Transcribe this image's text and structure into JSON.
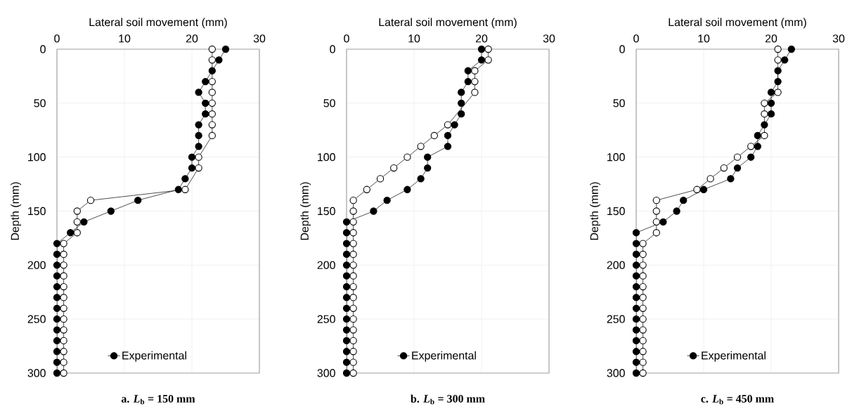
{
  "chart_data": [
    {
      "type": "line",
      "title": "a. *L*$_{b}$ = 150 mm",
      "xlabel": "Lateral soil movement (mm)",
      "ylabel": "Depth (mm)",
      "xlim": [
        0,
        30
      ],
      "xticks": [
        0,
        10,
        20,
        30
      ],
      "ylim": [
        300,
        0
      ],
      "yticks": [
        0,
        50,
        100,
        150,
        200,
        250,
        300
      ],
      "grid": true,
      "legend": "bottom",
      "marker": "circle",
      "line_style": "solid",
      "series": [
        {
          "name": "Experimental",
          "color": "#000000",
          "x": [
            25,
            24,
            23,
            22,
            21,
            22,
            22,
            21,
            21,
            21,
            20,
            20,
            19,
            18,
            12,
            8,
            4,
            2,
            0,
            0,
            0,
            0,
            0,
            0,
            0,
            0,
            0,
            0,
            0,
            0,
            0
          ],
          "values": [
            0,
            10,
            20,
            30,
            40,
            50,
            60,
            70,
            80,
            90,
            100,
            110,
            120,
            130,
            140,
            150,
            160,
            170,
            180,
            190,
            200,
            210,
            220,
            230,
            240,
            250,
            260,
            270,
            280,
            290,
            300
          ]
        },
        {
          "color": "#000000",
          "x": [
            23,
            23,
            null,
            23,
            23,
            23,
            23,
            23,
            23,
            null,
            21,
            21,
            null,
            19,
            5,
            3,
            3,
            3,
            1,
            1,
            1,
            1,
            1,
            1,
            1,
            1,
            1,
            1,
            1,
            1,
            1
          ],
          "values": [
            0,
            10,
            null,
            30,
            40,
            50,
            60,
            70,
            80,
            null,
            100,
            110,
            null,
            130,
            140,
            150,
            160,
            170,
            180,
            190,
            200,
            210,
            220,
            230,
            240,
            250,
            260,
            270,
            280,
            290,
            300
          ]
        }
      ]
    },
    {
      "type": "line",
      "title": "b. *L*$_{b}$ = 300 mm",
      "xlabel": "Lateral soil movement (mm)",
      "ylabel": "Depth (mm)",
      "xlim": [
        0,
        30
      ],
      "xticks": [
        0,
        10,
        20,
        30
      ],
      "ylim": [
        300,
        0
      ],
      "yticks": [
        0,
        50,
        100,
        150,
        200,
        250,
        300
      ],
      "grid": true,
      "legend": "bottom",
      "marker": "circle",
      "line_style": "solid",
      "series": [
        {
          "name": "Experimental",
          "color": "#000000",
          "x": [
            20,
            20,
            18,
            18,
            17,
            17,
            17,
            16,
            15,
            15,
            12,
            12,
            11,
            9,
            6,
            4,
            0,
            0,
            0,
            0,
            0,
            0,
            0,
            0,
            0,
            0,
            0,
            0,
            0,
            0,
            0
          ],
          "values": [
            0,
            10,
            20,
            30,
            40,
            50,
            60,
            70,
            80,
            90,
            100,
            110,
            120,
            130,
            140,
            150,
            160,
            170,
            180,
            190,
            200,
            210,
            220,
            230,
            240,
            250,
            260,
            270,
            280,
            290,
            300
          ]
        },
        {
          "color": "#000000",
          "x": [
            21,
            21,
            19,
            19,
            19,
            null,
            null,
            15,
            13,
            11,
            9,
            7,
            5,
            3,
            1,
            1,
            1,
            1,
            1,
            1,
            1,
            1,
            1,
            1,
            1,
            1,
            1,
            1,
            1,
            1,
            1
          ],
          "values": [
            0,
            10,
            20,
            30,
            40,
            null,
            null,
            70,
            80,
            90,
            100,
            110,
            120,
            130,
            140,
            150,
            160,
            170,
            180,
            190,
            200,
            210,
            220,
            230,
            240,
            250,
            260,
            270,
            280,
            290,
            300
          ]
        }
      ]
    },
    {
      "type": "line",
      "title": "c. *L*$_{b}$ = 450 mm",
      "xlabel": "Lateral soil movement (mm)",
      "ylabel": "Depth (mm)",
      "xlim": [
        0,
        30
      ],
      "xticks": [
        0,
        10,
        20,
        30
      ],
      "ylim": [
        300,
        0
      ],
      "yticks": [
        0,
        50,
        100,
        150,
        200,
        250,
        300
      ],
      "grid": true,
      "legend": "bottom",
      "marker": "circle",
      "line_style": "solid",
      "series": [
        {
          "name": "Experimental",
          "color": "#000000",
          "x": [
            23,
            22,
            21,
            21,
            20,
            20,
            20,
            19,
            18,
            18,
            17,
            15,
            14,
            10,
            7,
            6,
            4,
            0,
            0,
            0,
            0,
            0,
            0,
            0,
            0,
            0,
            0,
            0,
            0,
            0,
            0
          ],
          "values": [
            0,
            10,
            20,
            30,
            40,
            50,
            60,
            70,
            80,
            90,
            100,
            110,
            120,
            130,
            140,
            150,
            160,
            170,
            180,
            190,
            200,
            210,
            220,
            230,
            240,
            250,
            260,
            270,
            280,
            290,
            300
          ]
        },
        {
          "color": "#000000",
          "x": [
            21,
            21,
            null,
            null,
            21,
            19,
            19,
            null,
            19,
            17,
            15,
            13,
            11,
            9,
            3,
            3,
            3,
            3,
            1,
            1,
            1,
            1,
            1,
            1,
            1,
            1,
            1,
            1,
            1,
            1,
            1
          ],
          "values": [
            0,
            10,
            null,
            null,
            40,
            50,
            60,
            null,
            80,
            90,
            100,
            110,
            120,
            130,
            140,
            150,
            160,
            170,
            180,
            190,
            200,
            210,
            220,
            230,
            240,
            250,
            260,
            270,
            280,
            290,
            300
          ]
        }
      ]
    }
  ]
}
